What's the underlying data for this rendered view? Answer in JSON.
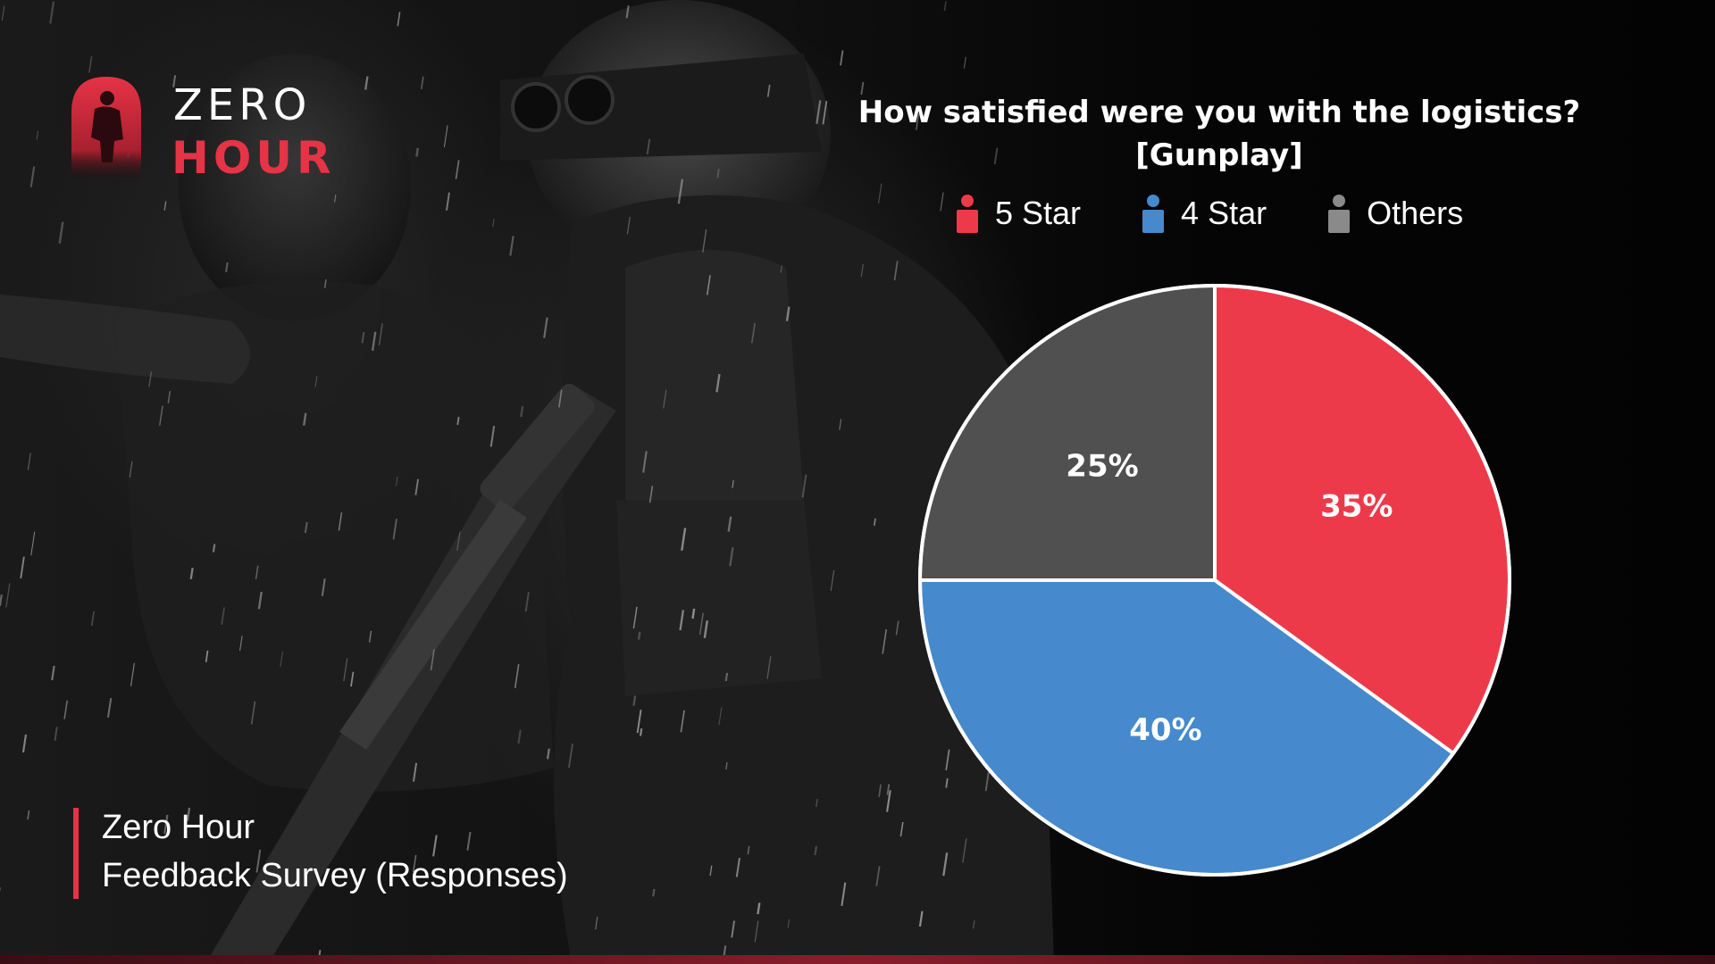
{
  "logo": {
    "word_top": "ZERO",
    "word_bottom": "HOUR"
  },
  "caption": {
    "line1": "Zero Hour",
    "line2": "Feedback Survey (Responses)"
  },
  "colors": {
    "accent": "#e63346",
    "five_star": "#ed3a4a",
    "four_star": "#4689cc",
    "others": "#505050"
  },
  "chart_data": {
    "type": "pie",
    "title": "How satisfied were you with the logistics?",
    "subtitle": "[Gunplay]",
    "legend_position": "top",
    "slices": [
      {
        "name": "5 Star",
        "value": 35,
        "label": "35%",
        "color": "#ed3a4a",
        "icon": "person-icon"
      },
      {
        "name": "4 Star",
        "value": 40,
        "label": "40%",
        "color": "#4689cc",
        "icon": "person-icon"
      },
      {
        "name": "Others",
        "value": 25,
        "label": "25%",
        "color": "#505050",
        "icon": "person-icon"
      }
    ]
  }
}
